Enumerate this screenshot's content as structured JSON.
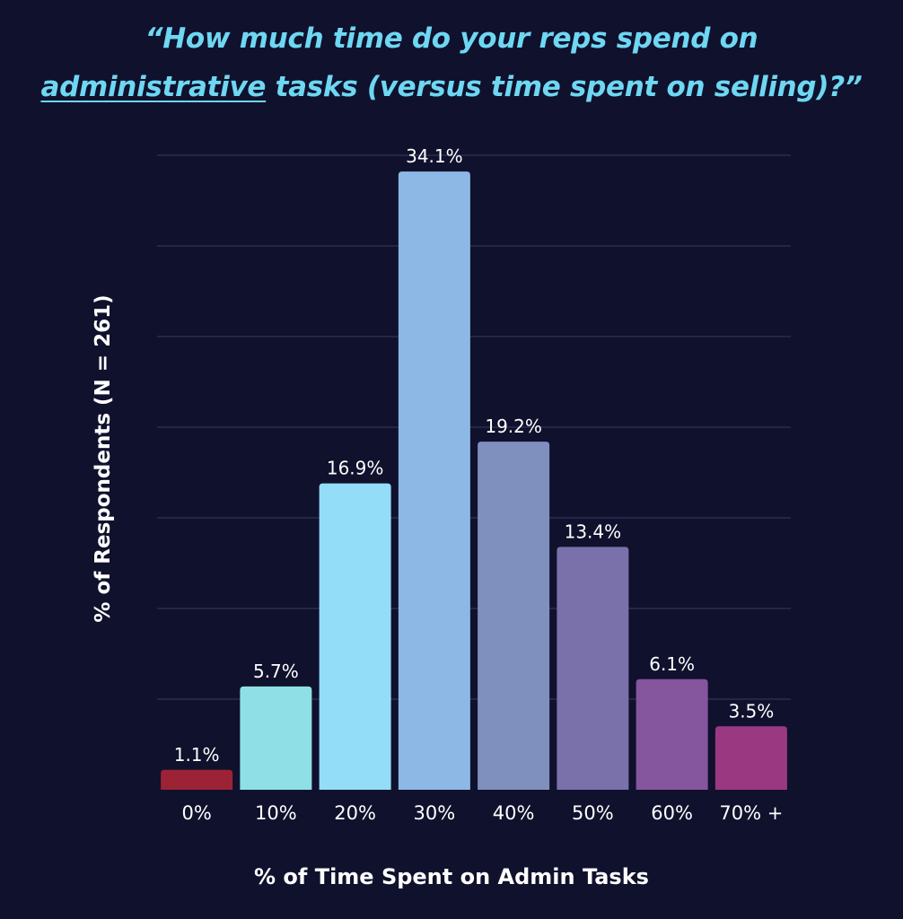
{
  "chart_data": {
    "type": "bar",
    "title_line1": "“How much time do your reps spend on",
    "title_line2_underlined": "administrative",
    "title_line2_rest": " tasks (versus time spent on selling)?”",
    "xlabel": "% of Time Spent on Admin Tasks",
    "ylabel": "% of Respondents (N = 261)",
    "categories": [
      "0%",
      "10%",
      "20%",
      "30%",
      "40%",
      "50%",
      "60%",
      "70% +"
    ],
    "values": [
      1.1,
      5.7,
      16.9,
      34.1,
      19.2,
      13.4,
      6.1,
      3.5
    ],
    "value_labels": [
      "1.1%",
      "5.7%",
      "16.9%",
      "34.1%",
      "19.2%",
      "13.4%",
      "6.1%",
      "3.5%"
    ],
    "colors": [
      "#9b2335",
      "#8ee0e6",
      "#93ddf8",
      "#8db8e6",
      "#7f90be",
      "#7a70aa",
      "#85559e",
      "#9a3982"
    ],
    "ylim": [
      0,
      35
    ],
    "gridlines": true,
    "grid_step": 5
  }
}
